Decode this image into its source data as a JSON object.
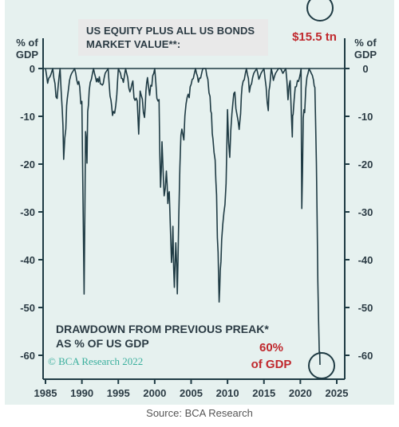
{
  "chart_data": {
    "type": "area",
    "title": "US EQUITY PLUS ALL US BONDS\nMARKET VALUE**:",
    "annotation": "DRAWDOWN FROM PREVIOUS PREAK*\nAS % OF US GDP",
    "ylabel_left": "% of\nGDP",
    "ylabel_right": "% of\nGDP",
    "xlim": [
      1985,
      2025
    ],
    "ylim": [
      -65,
      0
    ],
    "x_ticks": [
      1985,
      1990,
      1995,
      2000,
      2005,
      2010,
      2015,
      2020,
      2025
    ],
    "y_ticks": [
      0,
      -10,
      -20,
      -30,
      -40,
      -50,
      -60
    ],
    "grid": false,
    "x": [
      1985.0,
      1985.3,
      1985.6,
      1986.0,
      1986.3,
      1986.6,
      1987.0,
      1987.3,
      1987.5,
      1987.8,
      1988.0,
      1988.3,
      1988.6,
      1989.0,
      1989.3,
      1989.7,
      1990.0,
      1990.3,
      1990.5,
      1990.7,
      1990.8,
      1991.0,
      1991.3,
      1991.6,
      1992.0,
      1992.4,
      1992.8,
      1993.2,
      1993.6,
      1994.0,
      1994.2,
      1994.5,
      1994.8,
      1995.0,
      1995.3,
      1995.7,
      1996.0,
      1996.3,
      1996.6,
      1997.0,
      1997.3,
      1997.6,
      1997.8,
      1998.0,
      1998.3,
      1998.6,
      1998.8,
      1999.0,
      1999.3,
      1999.6,
      2000.0,
      2000.3,
      2000.6,
      2000.8,
      2001.0,
      2001.3,
      2001.6,
      2001.8,
      2002.0,
      2002.3,
      2002.5,
      2002.7,
      2002.9,
      2003.1,
      2003.3,
      2003.6,
      2004.0,
      2004.3,
      2004.6,
      2005.0,
      2005.3,
      2005.6,
      2006.0,
      2006.3,
      2006.6,
      2007.0,
      2007.3,
      2007.6,
      2007.8,
      2008.0,
      2008.3,
      2008.5,
      2008.7,
      2008.85,
      2009.0,
      2009.2,
      2009.5,
      2009.8,
      2010.0,
      2010.3,
      2010.6,
      2011.0,
      2011.3,
      2011.6,
      2011.8,
      2012.0,
      2012.3,
      2012.6,
      2013.0,
      2013.3,
      2013.6,
      2014.0,
      2014.3,
      2014.6,
      2015.0,
      2015.3,
      2015.6,
      2015.8,
      2016.0,
      2016.3,
      2016.6,
      2017.0,
      2017.3,
      2017.6,
      2018.0,
      2018.3,
      2018.6,
      2018.9,
      2019.0,
      2019.3,
      2019.6,
      2019.9,
      2020.1,
      2020.2,
      2020.4,
      2020.6,
      2020.9,
      2021.2,
      2021.5,
      2021.8,
      2022.0,
      2022.2,
      2022.4,
      2022.6,
      2022.7
    ],
    "values": [
      0,
      -3,
      -2,
      0,
      -4,
      -6,
      0,
      -8,
      -19,
      -12,
      -6,
      -3,
      -1,
      0,
      -2,
      -4,
      -8,
      -47,
      -14,
      -18,
      -10,
      -5,
      -2,
      0,
      -3,
      -2,
      -4,
      -1,
      0,
      -8,
      -10,
      -11,
      -5,
      0,
      -1,
      -3,
      0,
      -2,
      -5,
      -3,
      -8,
      -6,
      -12,
      -4,
      -6,
      -12,
      -5,
      -2,
      -5,
      -3,
      0,
      -6,
      -8,
      -25,
      -15,
      -28,
      -20,
      -30,
      -25,
      -40,
      -34,
      -47,
      -38,
      -47,
      -30,
      -14,
      -15,
      -8,
      -6,
      -4,
      -2,
      0,
      -3,
      -2,
      0,
      0,
      -3,
      -6,
      -10,
      -14,
      -20,
      -28,
      -40,
      -50,
      -44,
      -36,
      -30,
      -24,
      -10,
      -18,
      -8,
      -4,
      -10,
      -12,
      -8,
      -3,
      -2,
      0,
      -4,
      -3,
      -1,
      0,
      -2,
      -1,
      0,
      -4,
      -8,
      -4,
      0,
      -2,
      -1,
      0,
      0,
      -1,
      0,
      -6,
      -3,
      -15,
      -8,
      -5,
      -3,
      -2,
      0,
      -30,
      -10,
      -8,
      -2,
      0,
      -1,
      -2,
      -5,
      -20,
      -45,
      -60,
      -62
    ]
  },
  "left_unit": "% of\nGDP",
  "right_unit": "% of\nGDP",
  "value_annotation": "$15.5 tn",
  "drawdown_annotation": "60%\nof GDP",
  "copyright": "© BCA Research 2022",
  "source": "Source: BCA Research",
  "colors": {
    "series": "#1f3b44",
    "highlight": "#c0282d",
    "panel": "#e6f1ef",
    "brand": "#3aaf9d"
  }
}
